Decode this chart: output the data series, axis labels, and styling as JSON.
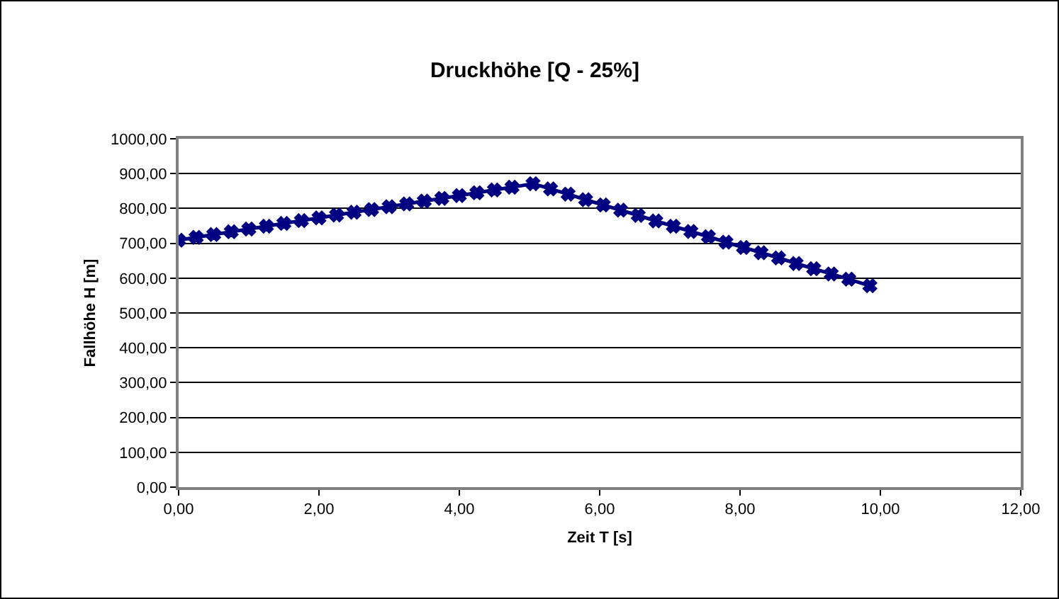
{
  "chart_data": {
    "type": "line",
    "title": "Druckhöhe [Q - 25%]",
    "xlabel": "Zeit T [s]",
    "ylabel": "Fallhöhe H [m]",
    "x": [
      0,
      0.25,
      0.5,
      0.75,
      1,
      1.25,
      1.5,
      1.75,
      2,
      2.25,
      2.5,
      2.75,
      3,
      3.25,
      3.5,
      3.75,
      4,
      4.25,
      4.5,
      4.75,
      5.05,
      5.3,
      5.55,
      5.8,
      6.05,
      6.3,
      6.55,
      6.8,
      7.05,
      7.3,
      7.55,
      7.8,
      8.05,
      8.3,
      8.55,
      8.8,
      9.05,
      9.3,
      9.55,
      9.85
    ],
    "series": [
      {
        "color": "#000080",
        "values": [
          709,
          717,
          725,
          733,
          741,
          749,
          757,
          765,
          773,
          781,
          789,
          797,
          805,
          813,
          821,
          829,
          837,
          845,
          853,
          861,
          871,
          856,
          841,
          825,
          810,
          795,
          780,
          764,
          749,
          734,
          719,
          703,
          688,
          673,
          658,
          642,
          627,
          612,
          597,
          578
        ]
      }
    ],
    "xlim": [
      0,
      12
    ],
    "xticks": [
      {
        "value": 0,
        "label": "0,00"
      },
      {
        "value": 2,
        "label": "2,00"
      },
      {
        "value": 4,
        "label": "4,00"
      },
      {
        "value": 6,
        "label": "6,00"
      },
      {
        "value": 8,
        "label": "8,00"
      },
      {
        "value": 10,
        "label": "10,00"
      },
      {
        "value": 12,
        "label": "12,00"
      }
    ],
    "ylim": [
      0,
      1000
    ],
    "yticks": [
      {
        "value": 0,
        "label": "0,00"
      },
      {
        "value": 100,
        "label": "100,00"
      },
      {
        "value": 200,
        "label": "200,00"
      },
      {
        "value": 300,
        "label": "300,00"
      },
      {
        "value": 400,
        "label": "400,00"
      },
      {
        "value": 500,
        "label": "500,00"
      },
      {
        "value": 600,
        "label": "600,00"
      },
      {
        "value": 700,
        "label": "700,00"
      },
      {
        "value": 800,
        "label": "800,00"
      },
      {
        "value": 900,
        "label": "900,00"
      },
      {
        "value": 1000,
        "label": "1000,00"
      }
    ],
    "grid": "y",
    "marker": "cross",
    "line_style": "solid",
    "legend": false
  }
}
